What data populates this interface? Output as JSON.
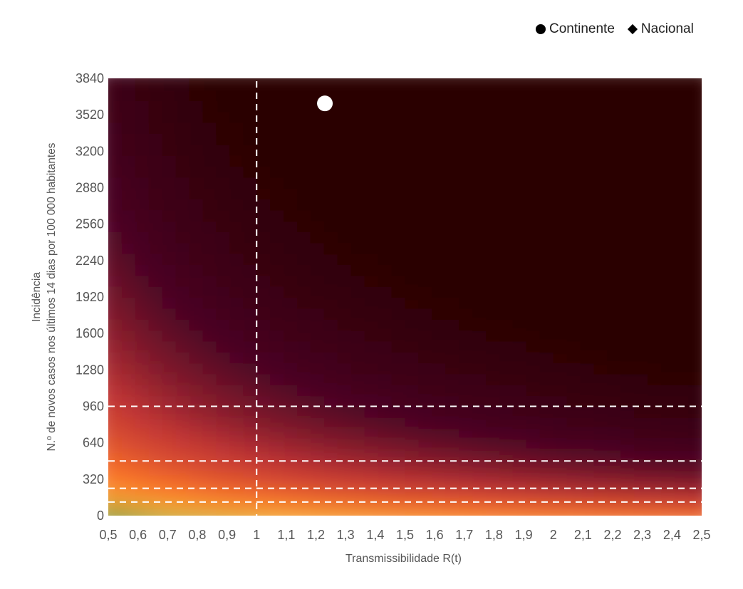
{
  "legend": [
    {
      "label": "Continente",
      "marker": "circle"
    },
    {
      "label": "Nacional",
      "marker": "diamond"
    }
  ],
  "chart_data": {
    "type": "heatmap",
    "xlabel": "Transmissibilidade R(t)",
    "ylabel": [
      "Incidência",
      "N.º de novos casos nos últimos 14 dias por 100 000 habitantes"
    ],
    "xlim": [
      0.5,
      2.5
    ],
    "ylim": [
      0,
      3840
    ],
    "x_ticks": [
      "0,5",
      "0,6",
      "0,7",
      "0,8",
      "0,9",
      "1",
      "1,1",
      "1,2",
      "1,3",
      "1,4",
      "1,5",
      "1,6",
      "1,7",
      "1,8",
      "1,9",
      "2",
      "2,1",
      "2,2",
      "2,3",
      "2,4",
      "2,5"
    ],
    "x_tick_values": [
      0.5,
      0.6,
      0.7,
      0.8,
      0.9,
      1.0,
      1.1,
      1.2,
      1.3,
      1.4,
      1.5,
      1.6,
      1.7,
      1.8,
      1.9,
      2.0,
      2.1,
      2.2,
      2.3,
      2.4,
      2.5
    ],
    "y_ticks": [
      "0",
      "320",
      "640",
      "960",
      "1280",
      "1600",
      "1920",
      "2240",
      "2560",
      "2880",
      "3200",
      "3520",
      "3840"
    ],
    "y_tick_values": [
      0,
      320,
      640,
      960,
      1280,
      1600,
      1920,
      2240,
      2560,
      2880,
      3200,
      3520,
      3840
    ],
    "reference_lines": {
      "vertical_x": [
        1.0
      ],
      "horizontal_y": [
        120,
        240,
        480,
        960
      ]
    },
    "points": [
      {
        "series": "Continente",
        "x": 1.23,
        "y": 3620
      }
    ],
    "colorscale": [
      "#3e8a3a",
      "#f2b33a",
      "#fb7328",
      "#c23535",
      "#4a0424",
      "#2a0000"
    ],
    "legend_position": "top-right",
    "grid": false
  }
}
